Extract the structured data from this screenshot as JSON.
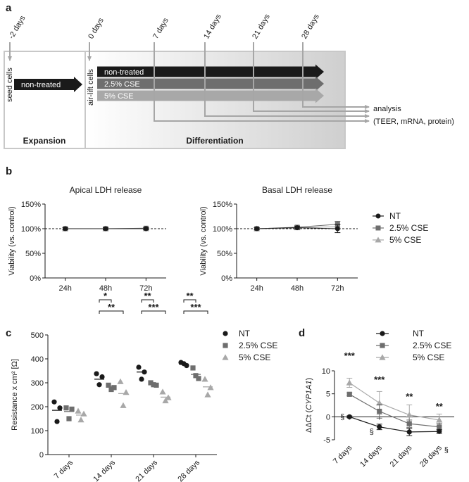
{
  "panel_a": {
    "letter": "a",
    "timepoints": [
      "-2 days",
      "0 days",
      "7 days",
      "14 days",
      "21 days",
      "28 days"
    ],
    "seed_label": "seed cells",
    "airlift_label": "air-lift cells",
    "expansion_arrow": "non-treated",
    "arrows": [
      "non-treated",
      "2.5% CSE",
      "5% CSE"
    ],
    "analysis_line1": "analysis",
    "analysis_line2": "(TEER, mRNA, protein)",
    "expansion_title": "Expansion",
    "differentiation_title": "Differentiation",
    "colors": {
      "nt": "#1a1a1a",
      "cse25": "#6e6e6e",
      "cse5": "#a8a8a8",
      "line": "#a6a6a6",
      "box": "#c8c8c8"
    }
  },
  "panel_b": {
    "letter": "b"
  },
  "panel_c": {
    "letter": "c"
  },
  "panel_d": {
    "letter": "d"
  },
  "chart_data": [
    {
      "type": "line",
      "title": "Apical LDH release",
      "ylabel": "Viability  (vs. control)",
      "categories": [
        "24h",
        "48h",
        "72h"
      ],
      "yticks": [
        "0%",
        "50%",
        "100%",
        "150%"
      ],
      "ylim": [
        0,
        150
      ],
      "reference_line": 100,
      "series": [
        {
          "name": "NT",
          "values": [
            100,
            100,
            100
          ],
          "err": [
            2,
            2,
            2
          ]
        },
        {
          "name": "2.5% CSE",
          "values": [
            100,
            100,
            101
          ],
          "err": [
            2,
            2,
            2
          ]
        },
        {
          "name": "5% CSE",
          "values": [
            100,
            100,
            100
          ],
          "err": [
            2,
            2,
            2
          ]
        }
      ]
    },
    {
      "type": "line",
      "title": "Basal LDH release",
      "ylabel": "Viability  (vs. control)",
      "categories": [
        "24h",
        "48h",
        "72h"
      ],
      "yticks": [
        "0%",
        "50%",
        "100%",
        "150%"
      ],
      "ylim": [
        0,
        150
      ],
      "reference_line": 100,
      "legend": [
        "NT",
        "2.5% CSE",
        "5% CSE"
      ],
      "series": [
        {
          "name": "NT",
          "values": [
            100,
            102,
            100
          ],
          "err": [
            2,
            3,
            8
          ]
        },
        {
          "name": "2.5% CSE",
          "values": [
            100,
            103,
            109
          ],
          "err": [
            2,
            3,
            6
          ]
        },
        {
          "name": "5% CSE",
          "values": [
            100,
            102,
            104
          ],
          "err": [
            2,
            3,
            5
          ]
        }
      ]
    },
    {
      "type": "scatter",
      "ylabel": "Resistance x cm² [Ω]",
      "categories": [
        "7 days",
        "14 days",
        "21 days",
        "28 days"
      ],
      "yticks": [
        "0",
        "100",
        "200",
        "300",
        "400",
        "500"
      ],
      "ylim": [
        0,
        500
      ],
      "legend": [
        "NT",
        "2.5% CSE",
        "5% CSE"
      ],
      "series": [
        {
          "name": "NT",
          "points": [
            [
              220,
              195,
              138
            ],
            [
              338,
              325,
              292
            ],
            [
              365,
              345,
              315
            ],
            [
              385,
              372,
              380
            ]
          ],
          "means": [
            185,
            315,
            345,
            378
          ]
        },
        {
          "name": "2.5% CSE",
          "points": [
            [
              195,
              190,
              150
            ],
            [
              290,
              280,
              272
            ],
            [
              300,
              290,
              292
            ],
            [
              362,
              318,
              330
            ]
          ],
          "means": [
            180,
            285,
            295,
            335
          ]
        },
        {
          "name": "5% CSE",
          "points": [
            [
              182,
              170,
              145
            ],
            [
              305,
              260,
              205
            ],
            [
              262,
              238,
              225
            ],
            [
              315,
              280,
              250
            ]
          ],
          "means": [
            165,
            255,
            240,
            283
          ]
        }
      ],
      "significance": [
        {
          "category": "14 days",
          "lines": [
            {
              "from": "NT",
              "to": "2.5% CSE",
              "label": "*"
            },
            {
              "from": "NT",
              "to": "5% CSE",
              "label": "**"
            }
          ]
        },
        {
          "category": "21 days",
          "lines": [
            {
              "from": "NT",
              "to": "2.5% CSE",
              "label": "**"
            },
            {
              "from": "NT",
              "to": "5% CSE",
              "label": "***"
            }
          ]
        },
        {
          "category": "28 days",
          "lines": [
            {
              "from": "NT",
              "to": "2.5% CSE",
              "label": "**"
            },
            {
              "from": "NT",
              "to": "5% CSE",
              "label": "***"
            }
          ]
        }
      ]
    },
    {
      "type": "line",
      "ylabel_prefix": "ΔΔCt (",
      "ylabel_gene": "CYP1A1",
      "ylabel_suffix": ")",
      "categories": [
        "7 days",
        "14 days",
        "21 days",
        "28 days"
      ],
      "yticks": [
        "-5",
        "0",
        "5",
        "10"
      ],
      "ylim": [
        -5,
        10
      ],
      "legend": [
        "NT",
        "2.5% CSE",
        "5% CSE"
      ],
      "series": [
        {
          "name": "NT",
          "values": [
            0,
            -2.2,
            -3.3,
            -3.2
          ],
          "err": [
            0.2,
            0.6,
            0.8,
            0.4
          ]
        },
        {
          "name": "2.5% CSE",
          "values": [
            4.9,
            1.2,
            -1.5,
            -2.2
          ],
          "err": [
            0.3,
            1.5,
            0.8,
            0.8
          ]
        },
        {
          "name": "5% CSE",
          "values": [
            7.4,
            3.0,
            0.4,
            -0.7
          ],
          "err": [
            1.0,
            2.5,
            2.2,
            1.3
          ]
        }
      ],
      "stars": [
        "***",
        "***",
        "**",
        "**"
      ],
      "section_marks": [
        "§",
        "§",
        "§"
      ]
    }
  ]
}
